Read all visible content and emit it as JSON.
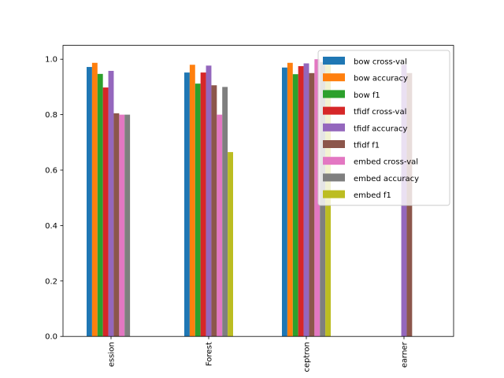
{
  "chart_data": {
    "type": "bar",
    "categories": [
      "Logistic Regression",
      "Random Forest",
      "Perceptron",
      "Meta Learner"
    ],
    "tick_labels_visible": [
      "ession",
      "Forest",
      "ceptron",
      "earner"
    ],
    "ylim": [
      0,
      1.05
    ],
    "yticks": [
      0.0,
      0.2,
      0.4,
      0.6,
      0.8,
      1.0
    ],
    "ytick_labels": [
      "0.0",
      "0.2",
      "0.4",
      "0.6",
      "0.8",
      "1.0"
    ],
    "legend_position": "top-right",
    "grid": false,
    "series": [
      {
        "name": "bow cross-val",
        "color": "#1f77b4",
        "values": [
          0.972,
          0.952,
          0.97,
          null
        ]
      },
      {
        "name": "bow accuracy",
        "color": "#ff7f0e",
        "values": [
          0.987,
          0.98,
          0.987,
          null
        ]
      },
      {
        "name": "bow f1",
        "color": "#2ca02c",
        "values": [
          0.947,
          0.912,
          0.946,
          null
        ]
      },
      {
        "name": "tfidf cross-val",
        "color": "#d62728",
        "values": [
          0.898,
          0.952,
          0.975,
          null
        ]
      },
      {
        "name": "tfidf accuracy",
        "color": "#9467bd",
        "values": [
          0.958,
          0.977,
          0.985,
          0.98
        ]
      },
      {
        "name": "tfidf f1",
        "color": "#8c564b",
        "values": [
          0.805,
          0.906,
          0.95,
          0.95
        ]
      },
      {
        "name": "embed cross-val",
        "color": "#e377c2",
        "values": [
          0.8,
          0.8,
          1.0,
          null
        ]
      },
      {
        "name": "embed accuracy",
        "color": "#7f7f7f",
        "values": [
          0.8,
          0.9,
          0.99,
          null
        ]
      },
      {
        "name": "embed f1",
        "color": "#bcbd22",
        "values": [
          null,
          0.665,
          0.99,
          null
        ]
      }
    ]
  }
}
